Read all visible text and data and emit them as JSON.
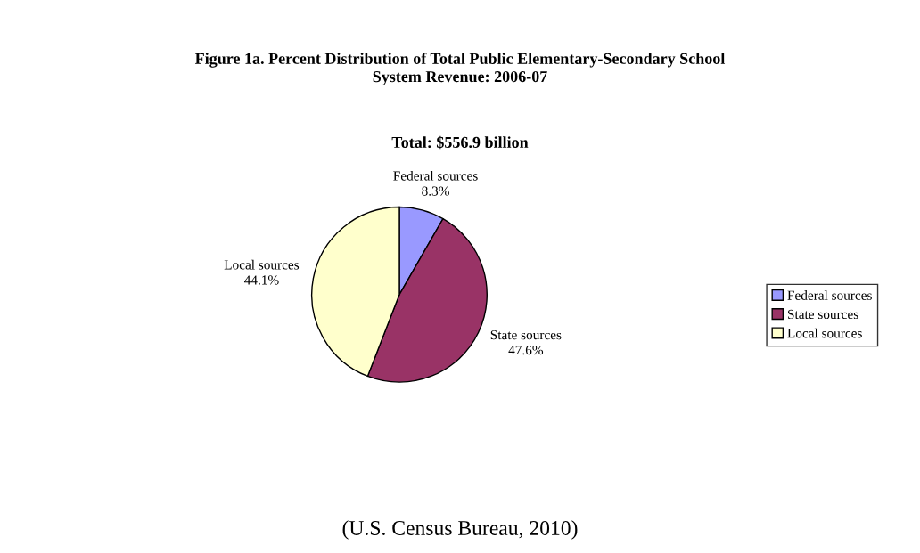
{
  "chart_data": {
    "type": "pie",
    "title": "Figure 1a. Percent Distribution of Total Public Elementary-Secondary School\nSystem Revenue: 2006-07",
    "subtitle": "Total: $556.9 billion",
    "categories": [
      "Federal sources",
      "State sources",
      "Local sources"
    ],
    "values": [
      8.3,
      47.6,
      44.1
    ],
    "value_labels": [
      "8.3%",
      "47.6%",
      "44.1%"
    ],
    "colors": [
      "#9999ff",
      "#993366",
      "#ffffcc"
    ],
    "legend": "right",
    "annotations": [
      "(U.S. Census Bureau, 2010)"
    ]
  }
}
